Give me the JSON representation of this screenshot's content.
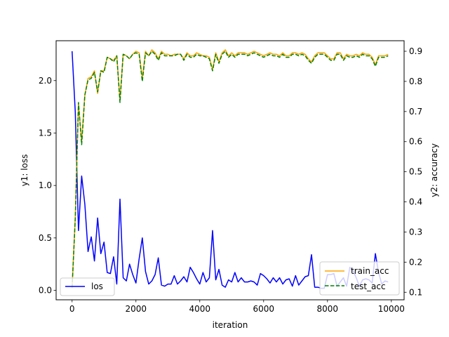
{
  "chart_data": {
    "type": "line",
    "xlabel": "iteration",
    "y1label": "y1: loss",
    "y2label": "y2: accuracy",
    "xlim": [
      -500,
      10400
    ],
    "y1lim": [
      -0.09,
      2.38
    ],
    "y2lim": [
      0.075,
      0.935
    ],
    "xticks": [
      0,
      2000,
      4000,
      6000,
      8000,
      10000
    ],
    "y1ticks": [
      0.0,
      0.5,
      1.0,
      1.5,
      2.0
    ],
    "y2ticks": [
      0.1,
      0.2,
      0.3,
      0.4,
      0.5,
      0.6,
      0.7,
      0.8,
      0.9
    ],
    "grid": false,
    "loss_legend_placement": "lower-left",
    "acc_legend_placement": "lower-right",
    "series": [
      {
        "name": "los",
        "axis": "y1",
        "color": "#0000ff",
        "style": "solid",
        "x": [
          0,
          100,
          200,
          300,
          400,
          500,
          600,
          700,
          800,
          900,
          1000,
          1100,
          1200,
          1300,
          1400,
          1500,
          1600,
          1700,
          1800,
          1900,
          2000,
          2100,
          2200,
          2300,
          2400,
          2500,
          2600,
          2700,
          2800,
          2900,
          3000,
          3100,
          3200,
          3300,
          3400,
          3500,
          3600,
          3700,
          3800,
          3900,
          4000,
          4100,
          4200,
          4300,
          4400,
          4500,
          4600,
          4700,
          4800,
          4900,
          5000,
          5100,
          5200,
          5300,
          5400,
          5500,
          5600,
          5700,
          5800,
          5900,
          6000,
          6100,
          6200,
          6300,
          6400,
          6500,
          6600,
          6700,
          6800,
          6900,
          7000,
          7100,
          7200,
          7300,
          7400,
          7500,
          7600,
          7700,
          7800,
          7900,
          8000,
          8100,
          8200,
          8300,
          8400,
          8500,
          8600,
          8700,
          8800,
          8900,
          9000,
          9100,
          9200,
          9300,
          9400,
          9500,
          9600,
          9700,
          9800,
          9900
        ],
        "y": [
          2.28,
          1.7,
          0.57,
          1.09,
          0.82,
          0.37,
          0.51,
          0.28,
          0.69,
          0.35,
          0.46,
          0.17,
          0.16,
          0.32,
          0.06,
          0.87,
          0.12,
          0.09,
          0.25,
          0.15,
          0.07,
          0.3,
          0.5,
          0.18,
          0.06,
          0.09,
          0.15,
          0.31,
          0.05,
          0.04,
          0.06,
          0.06,
          0.14,
          0.06,
          0.09,
          0.13,
          0.08,
          0.22,
          0.17,
          0.11,
          0.06,
          0.17,
          0.08,
          0.12,
          0.57,
          0.1,
          0.2,
          0.05,
          0.03,
          0.1,
          0.08,
          0.17,
          0.08,
          0.12,
          0.08,
          0.08,
          0.09,
          0.08,
          0.05,
          0.16,
          0.14,
          0.11,
          0.07,
          0.12,
          0.08,
          0.12,
          0.06,
          0.1,
          0.11,
          0.04,
          0.14,
          0.05,
          0.09,
          0.13,
          0.14,
          0.34,
          0.03,
          0.03,
          0.02,
          0.02,
          0.15,
          0.15,
          0.16,
          0.04,
          0.08,
          0.12,
          0.04,
          0.22,
          0.19,
          0.12,
          0.04,
          0.1,
          0.11,
          0.1,
          0.07,
          0.35,
          0.17,
          0.06,
          0.09,
          0.08
        ]
      },
      {
        "name": "train_acc",
        "axis": "y2",
        "color": "#ffa500",
        "style": "solid",
        "x": [
          0,
          100,
          200,
          300,
          400,
          500,
          600,
          700,
          800,
          900,
          1000,
          1100,
          1200,
          1300,
          1400,
          1500,
          1600,
          1700,
          1800,
          1900,
          2000,
          2100,
          2200,
          2300,
          2400,
          2500,
          2600,
          2700,
          2800,
          2900,
          3000,
          3100,
          3200,
          3300,
          3400,
          3500,
          3600,
          3700,
          3800,
          3900,
          4000,
          4100,
          4200,
          4300,
          4400,
          4500,
          4600,
          4700,
          4800,
          4900,
          5000,
          5100,
          5200,
          5300,
          5400,
          5500,
          5600,
          5700,
          5800,
          5900,
          6000,
          6100,
          6200,
          6300,
          6400,
          6500,
          6600,
          6700,
          6800,
          6900,
          7000,
          7100,
          7200,
          7300,
          7400,
          7500,
          7600,
          7700,
          7800,
          7900,
          8000,
          8100,
          8200,
          8300,
          8400,
          8500,
          8600,
          8700,
          8800,
          8900,
          9000,
          9100,
          9200,
          9300,
          9400,
          9500,
          9600,
          9700,
          9800,
          9900
        ],
        "y": [
          0.115,
          0.35,
          0.725,
          0.6,
          0.755,
          0.81,
          0.815,
          0.835,
          0.76,
          0.835,
          0.835,
          0.88,
          0.875,
          0.87,
          0.885,
          0.74,
          0.89,
          0.885,
          0.875,
          0.89,
          0.9,
          0.895,
          0.81,
          0.9,
          0.885,
          0.905,
          0.895,
          0.875,
          0.9,
          0.89,
          0.89,
          0.885,
          0.89,
          0.89,
          0.89,
          0.875,
          0.895,
          0.885,
          0.885,
          0.895,
          0.89,
          0.885,
          0.885,
          0.88,
          0.84,
          0.895,
          0.865,
          0.895,
          0.905,
          0.885,
          0.895,
          0.885,
          0.895,
          0.895,
          0.895,
          0.89,
          0.895,
          0.9,
          0.895,
          0.89,
          0.885,
          0.89,
          0.895,
          0.89,
          0.89,
          0.885,
          0.895,
          0.885,
          0.885,
          0.895,
          0.895,
          0.89,
          0.895,
          0.89,
          0.875,
          0.865,
          0.885,
          0.895,
          0.895,
          0.895,
          0.885,
          0.875,
          0.875,
          0.895,
          0.895,
          0.875,
          0.89,
          0.885,
          0.885,
          0.89,
          0.885,
          0.895,
          0.89,
          0.89,
          0.88,
          0.855,
          0.885,
          0.885,
          0.885,
          0.89
        ]
      },
      {
        "name": "test_acc",
        "axis": "y2",
        "color": "#008000",
        "style": "dashed",
        "x": [
          0,
          100,
          200,
          300,
          400,
          500,
          600,
          700,
          800,
          900,
          1000,
          1100,
          1200,
          1300,
          1400,
          1500,
          1600,
          1700,
          1800,
          1900,
          2000,
          2100,
          2200,
          2300,
          2400,
          2500,
          2600,
          2700,
          2800,
          2900,
          3000,
          3100,
          3200,
          3300,
          3400,
          3500,
          3600,
          3700,
          3800,
          3900,
          4000,
          4100,
          4200,
          4300,
          4400,
          4500,
          4600,
          4700,
          4800,
          4900,
          5000,
          5100,
          5200,
          5300,
          5400,
          5500,
          5600,
          5700,
          5800,
          5900,
          6000,
          6100,
          6200,
          6300,
          6400,
          6500,
          6600,
          6700,
          6800,
          6900,
          7000,
          7100,
          7200,
          7300,
          7400,
          7500,
          7600,
          7700,
          7800,
          7900,
          8000,
          8100,
          8200,
          8300,
          8400,
          8500,
          8600,
          8700,
          8800,
          8900,
          9000,
          9100,
          9200,
          9300,
          9400,
          9500,
          9600,
          9700,
          9800,
          9900
        ],
        "y": [
          0.115,
          0.345,
          0.73,
          0.59,
          0.755,
          0.805,
          0.81,
          0.83,
          0.765,
          0.835,
          0.83,
          0.88,
          0.875,
          0.865,
          0.885,
          0.73,
          0.89,
          0.885,
          0.875,
          0.89,
          0.895,
          0.89,
          0.8,
          0.895,
          0.885,
          0.9,
          0.89,
          0.87,
          0.895,
          0.885,
          0.885,
          0.885,
          0.885,
          0.89,
          0.89,
          0.87,
          0.89,
          0.88,
          0.88,
          0.89,
          0.885,
          0.885,
          0.88,
          0.875,
          0.835,
          0.89,
          0.86,
          0.89,
          0.9,
          0.88,
          0.89,
          0.88,
          0.89,
          0.89,
          0.89,
          0.885,
          0.89,
          0.895,
          0.89,
          0.885,
          0.88,
          0.885,
          0.89,
          0.885,
          0.885,
          0.88,
          0.89,
          0.88,
          0.88,
          0.89,
          0.89,
          0.885,
          0.89,
          0.885,
          0.87,
          0.86,
          0.88,
          0.89,
          0.89,
          0.89,
          0.88,
          0.87,
          0.87,
          0.89,
          0.89,
          0.87,
          0.885,
          0.88,
          0.88,
          0.885,
          0.88,
          0.89,
          0.885,
          0.885,
          0.875,
          0.85,
          0.88,
          0.88,
          0.88,
          0.885
        ]
      }
    ]
  }
}
